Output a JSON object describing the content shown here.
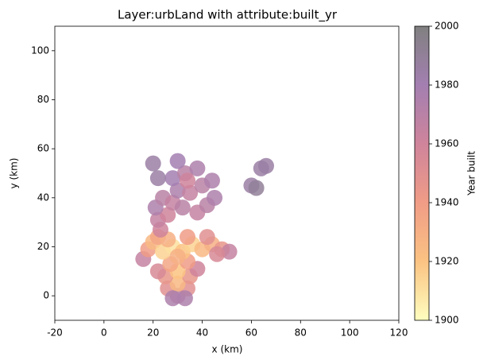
{
  "chart_data": {
    "type": "heatmap",
    "title": "Layer:urbLand with attribute:built_yr",
    "xlabel": "x (km)",
    "ylabel": "y (km)",
    "xlim": [
      -20,
      120
    ],
    "xticks": [
      -20,
      0,
      20,
      40,
      60,
      80,
      100,
      120
    ],
    "ylim": [
      -10,
      110
    ],
    "yticks": [
      0,
      20,
      40,
      60,
      80,
      100
    ],
    "x": [
      30,
      26,
      34,
      30,
      25,
      35,
      30,
      22,
      38,
      28,
      33,
      27,
      34,
      16,
      18,
      20,
      24,
      28,
      32,
      36,
      40,
      44,
      48,
      51,
      22,
      34,
      42,
      26,
      30,
      46,
      23,
      22,
      26,
      21,
      24,
      28,
      32,
      38,
      42,
      45,
      30,
      35,
      40,
      44,
      28,
      33,
      38,
      30,
      34,
      22,
      20,
      60,
      64,
      66,
      62
    ],
    "y": [
      0,
      3,
      3,
      5,
      8,
      8,
      10,
      10,
      11,
      -1,
      -1,
      13,
      14,
      15,
      19,
      22,
      18,
      20,
      18,
      21,
      19,
      21,
      19,
      18,
      24,
      24,
      24,
      23,
      16,
      17,
      27,
      31,
      33,
      36,
      40,
      38,
      36,
      34,
      37,
      40,
      43,
      42,
      45,
      47,
      48,
      50,
      52,
      55,
      47,
      48,
      54,
      45,
      52,
      53,
      44
    ],
    "values": [
      1970,
      1950,
      1950,
      1925,
      1945,
      1945,
      1920,
      1955,
      1960,
      1975,
      1975,
      1935,
      1940,
      1965,
      1940,
      1925,
      1915,
      1910,
      1920,
      1915,
      1925,
      1930,
      1945,
      1965,
      1935,
      1940,
      1950,
      1930,
      1930,
      1955,
      1960,
      1965,
      1960,
      1975,
      1970,
      1965,
      1970,
      1965,
      1970,
      1975,
      1975,
      1965,
      1970,
      1975,
      1980,
      1970,
      1975,
      1980,
      1960,
      1985,
      1985,
      1985,
      1985,
      1985,
      1990
    ],
    "colorbar_label": "Year built",
    "clim": [
      1900,
      2000
    ],
    "cticks": [
      1900,
      1920,
      1940,
      1960,
      1980,
      2000
    ],
    "colormap": [
      "#fefebf",
      "#fbc383",
      "#f09c86",
      "#cf849b",
      "#a37fb1",
      "#808080"
    ]
  }
}
